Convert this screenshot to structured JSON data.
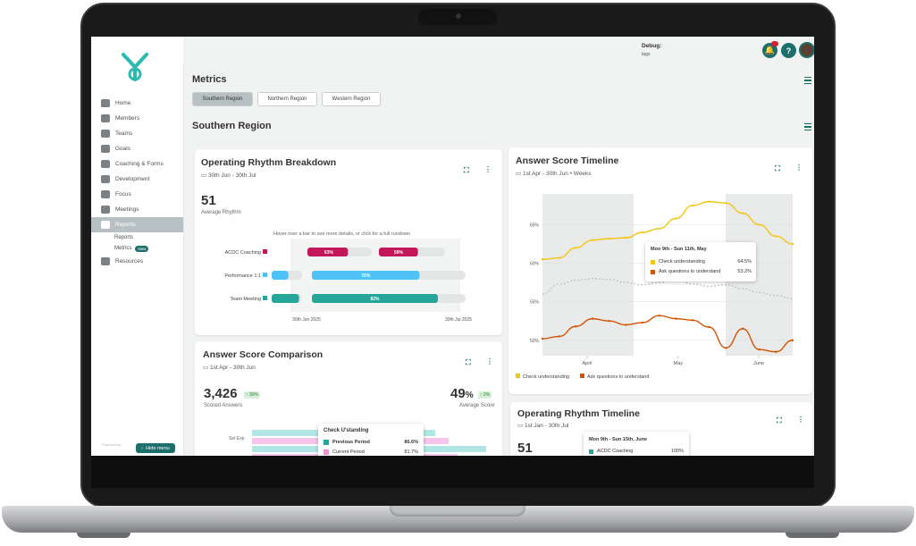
{
  "sidebar": {
    "items": [
      {
        "label": "Home",
        "icon": "home-icon"
      },
      {
        "label": "Members",
        "icon": "person-icon"
      },
      {
        "label": "Teams",
        "icon": "team-icon"
      },
      {
        "label": "Goals",
        "icon": "target-icon"
      },
      {
        "label": "Coaching & Forms",
        "icon": "chat-icon"
      },
      {
        "label": "Development",
        "icon": "chart-line-icon"
      },
      {
        "label": "Focus",
        "icon": "list-icon"
      },
      {
        "label": "Meetings",
        "icon": "meeting-icon"
      },
      {
        "label": "Reports",
        "icon": "pie-icon"
      },
      {
        "label": "Resources",
        "icon": "folder-icon"
      }
    ],
    "sub_items": [
      "Reports",
      "Metrics"
    ],
    "new_badge": "New",
    "hide_menu": "Hide menu",
    "powered_by": "Powered by"
  },
  "header": {
    "debug_label": "Debug:",
    "debug_sub": "tags",
    "help_label": "?",
    "accent": "#1c6f6a"
  },
  "page": {
    "title": "Metrics",
    "regions": [
      "Southern Region",
      "Northern Region",
      "Western Region"
    ],
    "selected_region": "Southern Region",
    "section_title": "Southern Region"
  },
  "rhythm": {
    "title": "Operating Rhythm Breakdown",
    "date": "30th Jun - 30th Jul",
    "value": "51",
    "value_label": "Average Rhythm",
    "hint": "Hover over a bar to see more details, or click for a full rundown",
    "rows": [
      {
        "label": "ACDC Coaching",
        "color": "#c2185b",
        "bars": [
          {
            "text": "63%",
            "pct": 0.63
          },
          {
            "text": "59%",
            "pct": 0.59
          }
        ]
      },
      {
        "label": "Performance 1:1",
        "color": "#4fc3f7",
        "bars": [
          {
            "text": "",
            "pct": 0.55
          },
          {
            "text": "70%",
            "pct": 0.7
          }
        ]
      },
      {
        "label": "Team Meeting",
        "color": "#26a69a",
        "bars": [
          {
            "text": "",
            "pct": 0.9
          },
          {
            "text": "82%",
            "pct": 0.82
          }
        ]
      }
    ],
    "x_labels": [
      "30th Jun 2025",
      "30th Jul 2025"
    ]
  },
  "comparison": {
    "title": "Answer Score Comparison",
    "date": "1st Apr - 30th Jun",
    "left_value": "3,426",
    "left_trend": "30%",
    "left_label": "Scored Answers",
    "right_value": "49",
    "right_unit": "%",
    "right_trend": "2%",
    "right_label": "Average Score",
    "row_label": "Set Exp",
    "tooltip": {
      "title": "Check U'standing",
      "rows": [
        {
          "label": "Previous Period",
          "value": "86.6%",
          "color": "#26a69a"
        },
        {
          "label": "Current Period",
          "value": "81.7%",
          "color": "#f48fd1"
        }
      ]
    }
  },
  "timeline": {
    "title": "Answer Score Timeline",
    "date": "1st Apr - 30th Jun",
    "granularity": "Weeks",
    "tooltip": {
      "title": "Mon 9th - Sun 11th, May",
      "rows": [
        {
          "label": "Check understanding",
          "value": "64.5%",
          "color": "#f2c511"
        },
        {
          "label": "Ask questions to understand",
          "value": "53.2%",
          "color": "#d35400"
        }
      ]
    }
  },
  "rhythm_timeline": {
    "title": "Operating Rhythm Timeline",
    "date": "1st Jan - 30th Jul",
    "value": "51",
    "tooltip_title": "Mon 9th - Sun 15th, June",
    "tooltip_row": "ACDC Coaching",
    "tooltip_value": "100%"
  },
  "chart_data": [
    {
      "type": "line",
      "title": "Answer Score Timeline",
      "x_ticks": [
        "April",
        "May",
        "June"
      ],
      "y_ticks": [
        "65%",
        "60%",
        "55%",
        "50%"
      ],
      "ylim": [
        48,
        69
      ],
      "series": [
        {
          "name": "Check understanding",
          "color": "#f2c511",
          "values": [
            60.5,
            60.7,
            62.0,
            63.0,
            63.2,
            63.3,
            64.0,
            64.5,
            65.8,
            67.5,
            68.0,
            67.8,
            66.5,
            65.0,
            63.5,
            62.5
          ]
        },
        {
          "name": "",
          "color": "#b5b5b5",
          "dashed": true,
          "values": [
            56.0,
            57.3,
            57.8,
            58.0,
            57.9,
            57.5,
            57.2,
            57.5,
            58.0,
            57.3,
            57.0,
            57.2,
            56.7,
            56.2,
            55.8,
            55.4
          ]
        },
        {
          "name": "Ask questions to understand",
          "color": "#d35400",
          "values": [
            50.2,
            50.5,
            51.8,
            52.8,
            52.5,
            52.0,
            52.3,
            53.2,
            52.8,
            52.6,
            51.7,
            49.0,
            51.5,
            48.8,
            48.5,
            50.0
          ]
        }
      ],
      "legend": [
        "Check understanding",
        "Ask questions to understand"
      ],
      "legend_position": "bottom-left",
      "grid": true
    }
  ]
}
